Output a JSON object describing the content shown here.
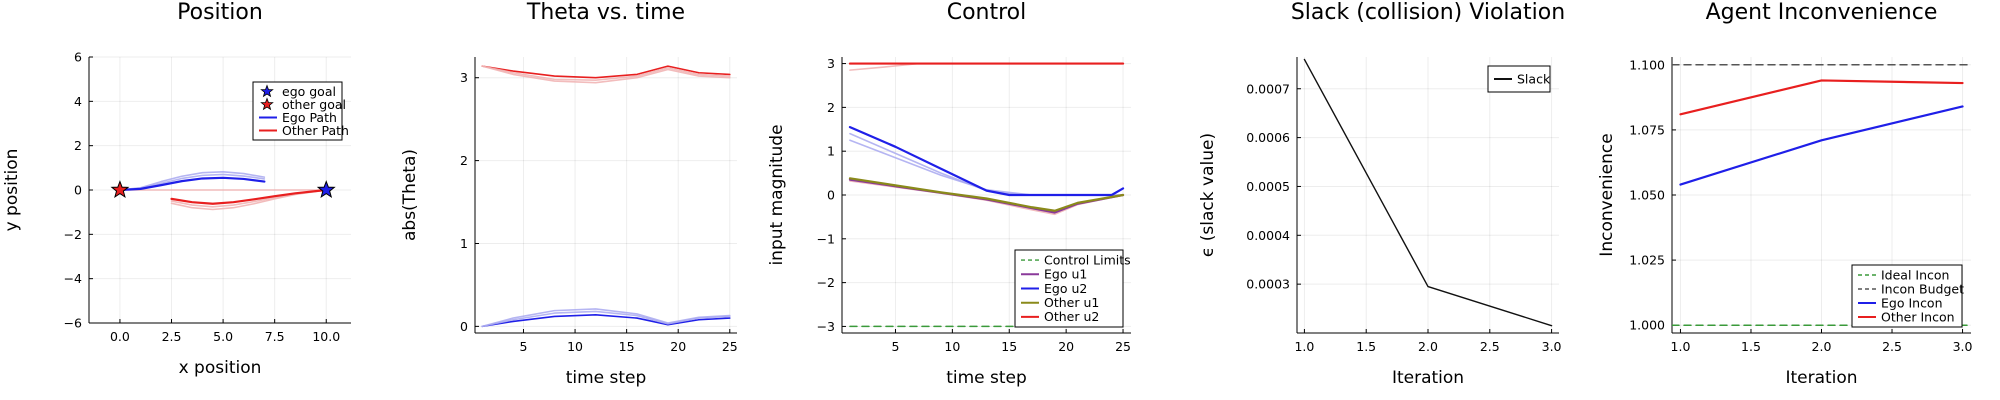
{
  "colors": {
    "ego": "#1f1fe8",
    "other": "#e81f1f",
    "limit": "#3a9a3a",
    "budget": "#555555",
    "purple": "#8a3a9a",
    "olive": "#8a8a1a",
    "slack": "#111111",
    "ego_faint": "#a8a8f0",
    "other_faint": "#f0b0b0"
  },
  "chart_data": [
    {
      "type": "line",
      "title": "Position",
      "xlabel": "x position",
      "ylabel": "y position",
      "xlim": [
        -1.5,
        11.2
      ],
      "ylim": [
        -6,
        6
      ],
      "xticks": [
        0,
        2.5,
        5,
        7.5,
        10
      ],
      "xtick_labels": [
        "0.0",
        "2.5",
        "5.0",
        "7.5",
        "10.0"
      ],
      "yticks": [
        -6,
        -4,
        -2,
        0,
        2,
        4,
        6
      ],
      "ytick_labels": [
        "−6",
        "−4",
        "−2",
        "0",
        "2",
        "4",
        "6"
      ],
      "legend": "top-right",
      "series": [
        {
          "name": "ego goal",
          "kind": "marker",
          "color": "ego",
          "x": [
            10
          ],
          "y": [
            0
          ]
        },
        {
          "name": "other goal",
          "kind": "marker",
          "color": "other",
          "x": [
            0
          ],
          "y": [
            0
          ]
        },
        {
          "name": "Ego Path",
          "color": "ego",
          "x": [
            0,
            1,
            2,
            3,
            4,
            5,
            6,
            7
          ],
          "y": [
            0,
            0.05,
            0.22,
            0.4,
            0.52,
            0.55,
            0.5,
            0.38
          ]
        },
        {
          "name": "Other Path",
          "color": "other",
          "x": [
            2.5,
            3.5,
            4.5,
            5.5,
            6.5,
            7.5,
            8.5,
            10
          ],
          "y": [
            -0.4,
            -0.55,
            -0.62,
            -0.55,
            -0.42,
            -0.28,
            -0.15,
            0
          ]
        },
        {
          "color": "ego_faint",
          "x": [
            0,
            1,
            2,
            3,
            4,
            5,
            6,
            7
          ],
          "y": [
            0,
            0.08,
            0.3,
            0.52,
            0.66,
            0.7,
            0.63,
            0.5
          ]
        },
        {
          "color": "ego_faint",
          "x": [
            0,
            1,
            2,
            3,
            4,
            5,
            6,
            7
          ],
          "y": [
            0,
            0.1,
            0.38,
            0.62,
            0.78,
            0.82,
            0.74,
            0.58
          ]
        },
        {
          "color": "other_faint",
          "x": [
            2.5,
            3.5,
            4.5,
            5.5,
            6.5,
            7.5,
            8.5,
            10
          ],
          "y": [
            -0.5,
            -0.68,
            -0.76,
            -0.68,
            -0.52,
            -0.34,
            -0.18,
            0
          ]
        },
        {
          "color": "other_faint",
          "x": [
            2.5,
            3.5,
            4.5,
            5.5,
            6.5,
            7.5,
            8.5,
            10
          ],
          "y": [
            -0.6,
            -0.8,
            -0.88,
            -0.8,
            -0.62,
            -0.4,
            -0.2,
            0
          ]
        },
        {
          "color": "other_faint",
          "x": [
            0,
            10
          ],
          "y": [
            0,
            0
          ]
        }
      ]
    },
    {
      "type": "line",
      "title": "Theta vs. time",
      "xlabel": "time step",
      "ylabel": "abs(Theta)",
      "xlim": [
        0.3,
        25.7
      ],
      "ylim": [
        -0.08,
        3.25
      ],
      "xticks": [
        5,
        10,
        15,
        20,
        25
      ],
      "xtick_labels": [
        "5",
        "10",
        "15",
        "20",
        "25"
      ],
      "yticks": [
        0,
        1,
        2,
        3
      ],
      "ytick_labels": [
        "0",
        "1",
        "2",
        "3"
      ],
      "series": [
        {
          "color": "other",
          "x": [
            1,
            4,
            8,
            12,
            16,
            19,
            22,
            25
          ],
          "y": [
            3.14,
            3.08,
            3.02,
            3.0,
            3.04,
            3.14,
            3.06,
            3.04
          ]
        },
        {
          "color": "other_faint",
          "x": [
            1,
            4,
            8,
            12,
            16,
            19,
            22,
            25
          ],
          "y": [
            3.14,
            3.06,
            2.98,
            2.97,
            3.02,
            3.12,
            3.04,
            3.02
          ]
        },
        {
          "color": "other_faint",
          "x": [
            1,
            4,
            8,
            12,
            16,
            19,
            22,
            25
          ],
          "y": [
            3.14,
            3.04,
            2.96,
            2.94,
            3.0,
            3.1,
            3.02,
            3.0
          ]
        },
        {
          "color": "ego",
          "x": [
            1,
            4,
            8,
            12,
            16,
            19,
            22,
            25
          ],
          "y": [
            0,
            0.06,
            0.12,
            0.14,
            0.1,
            0.02,
            0.08,
            0.1
          ]
        },
        {
          "color": "ego_faint",
          "x": [
            1,
            4,
            8,
            12,
            16,
            19,
            22,
            25
          ],
          "y": [
            0,
            0.08,
            0.16,
            0.18,
            0.13,
            0.03,
            0.1,
            0.12
          ]
        },
        {
          "color": "ego_faint",
          "x": [
            1,
            4,
            8,
            12,
            16,
            19,
            22,
            25
          ],
          "y": [
            0,
            0.1,
            0.19,
            0.21,
            0.15,
            0.04,
            0.11,
            0.13
          ]
        }
      ]
    },
    {
      "type": "line",
      "title": "Control",
      "xlabel": "time step",
      "ylabel": "input magnitude",
      "xlim": [
        0.3,
        25.7
      ],
      "ylim": [
        -3.15,
        3.15
      ],
      "xticks": [
        5,
        10,
        15,
        20,
        25
      ],
      "xtick_labels": [
        "5",
        "10",
        "15",
        "20",
        "25"
      ],
      "yticks": [
        -3,
        -2,
        -1,
        0,
        1,
        2,
        3
      ],
      "ytick_labels": [
        "−3",
        "−2",
        "−1",
        "0",
        "1",
        "2",
        "3"
      ],
      "legend": "bottom-right",
      "series": [
        {
          "name": "Control Limits",
          "color": "limit",
          "dash": true,
          "x": [
            1,
            25
          ],
          "y": [
            -3,
            -3
          ]
        },
        {
          "name": "Ego u1",
          "color": "purple",
          "x": [
            1,
            5,
            9,
            13,
            17,
            19,
            21,
            25
          ],
          "y": [
            0.35,
            0.2,
            0.05,
            -0.1,
            -0.3,
            -0.4,
            -0.2,
            0
          ]
        },
        {
          "name": "Ego u2",
          "color": "ego",
          "x": [
            1,
            5,
            9,
            13,
            15,
            19,
            24,
            25
          ],
          "y": [
            1.55,
            1.1,
            0.6,
            0.1,
            0,
            0,
            0,
            0.15
          ]
        },
        {
          "name": "Other u1",
          "color": "olive",
          "x": [
            1,
            5,
            9,
            13,
            17,
            19,
            21,
            25
          ],
          "y": [
            0.38,
            0.22,
            0.06,
            -0.08,
            -0.28,
            -0.36,
            -0.18,
            0
          ]
        },
        {
          "name": "Other u2",
          "color": "other",
          "x": [
            1,
            25
          ],
          "y": [
            3,
            3
          ]
        },
        {
          "color": "limit",
          "dash": true,
          "x": [
            1,
            25
          ],
          "y": [
            3,
            3
          ]
        },
        {
          "color": "ego_faint",
          "x": [
            1,
            5,
            9,
            13,
            16,
            25
          ],
          "y": [
            1.4,
            0.95,
            0.5,
            0.1,
            0,
            0
          ]
        },
        {
          "color": "ego_faint",
          "x": [
            1,
            5,
            9,
            13,
            17,
            25
          ],
          "y": [
            1.25,
            0.85,
            0.45,
            0.12,
            0,
            0
          ]
        },
        {
          "color": "other_faint",
          "x": [
            1,
            4,
            7,
            25
          ],
          "y": [
            2.85,
            2.92,
            3.0,
            3.0
          ]
        },
        {
          "color": "other_faint",
          "x": [
            1,
            5,
            9,
            13,
            17,
            19,
            21,
            25
          ],
          "y": [
            0.32,
            0.18,
            0.04,
            -0.12,
            -0.34,
            -0.44,
            -0.22,
            0
          ]
        }
      ]
    },
    {
      "type": "line",
      "title": "Slack (collision) Violation",
      "xlabel": "Iteration",
      "ylabel": "ϵ (slack value)",
      "xlim": [
        0.94,
        3.06
      ],
      "ylim": [
        0.0002,
        0.000765
      ],
      "xticks": [
        1,
        1.5,
        2,
        2.5,
        3
      ],
      "xtick_labels": [
        "1.0",
        "1.5",
        "2.0",
        "2.5",
        "3.0"
      ],
      "yticks": [
        0.0003,
        0.0004,
        0.0005,
        0.0006,
        0.0007
      ],
      "ytick_labels": [
        "0.0003",
        "0.0004",
        "0.0005",
        "0.0006",
        "0.0007"
      ],
      "legend": "top-right",
      "series": [
        {
          "name": "Slack",
          "color": "slack",
          "x": [
            1,
            2,
            3
          ],
          "y": [
            0.00076,
            0.000295,
            0.000215
          ]
        }
      ]
    },
    {
      "type": "line",
      "title": "Agent Inconvenience",
      "xlabel": "Iteration",
      "ylabel": "Inconvenience",
      "xlim": [
        0.94,
        3.06
      ],
      "ylim": [
        0.997,
        1.103
      ],
      "xticks": [
        1,
        1.5,
        2,
        2.5,
        3
      ],
      "xtick_labels": [
        "1.0",
        "1.5",
        "2.0",
        "2.5",
        "3.0"
      ],
      "yticks": [
        1.0,
        1.025,
        1.05,
        1.075,
        1.1
      ],
      "ytick_labels": [
        "1.000",
        "1.025",
        "1.050",
        "1.075",
        "1.100"
      ],
      "legend": "bottom-right",
      "series": [
        {
          "name": "Ideal Incon",
          "color": "limit",
          "dash": true,
          "x": [
            0.94,
            3.06
          ],
          "y": [
            1.0,
            1.0
          ]
        },
        {
          "name": "Incon Budget",
          "color": "budget",
          "dash": true,
          "x": [
            0.94,
            3.06
          ],
          "y": [
            1.1,
            1.1
          ]
        },
        {
          "name": "Ego Incon",
          "color": "ego",
          "x": [
            1,
            2,
            3
          ],
          "y": [
            1.054,
            1.071,
            1.084
          ]
        },
        {
          "name": "Other Incon",
          "color": "other",
          "x": [
            1,
            2,
            3
          ],
          "y": [
            1.081,
            1.094,
            1.093
          ]
        }
      ]
    }
  ]
}
